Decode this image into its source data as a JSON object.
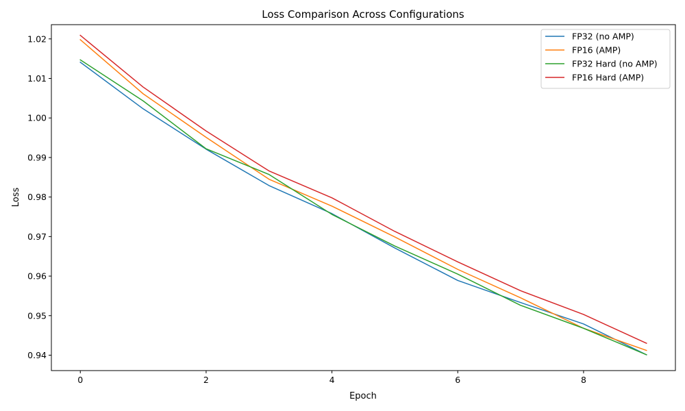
{
  "chart_data": {
    "type": "line",
    "title": "Loss Comparison Across Configurations",
    "xlabel": "Epoch",
    "ylabel": "Loss",
    "xlim": [
      -0.46,
      9.46
    ],
    "ylim": [
      0.9361,
      1.0236
    ],
    "xticks": [
      0,
      2,
      4,
      6,
      8
    ],
    "yticks": [
      0.94,
      0.95,
      0.96,
      0.97,
      0.98,
      0.99,
      1.0,
      1.01,
      1.02
    ],
    "ytick_labels": [
      "0.94",
      "0.95",
      "0.96",
      "0.97",
      "0.98",
      "0.99",
      "1.00",
      "1.01",
      "1.02"
    ],
    "grid": false,
    "legend_position": "top-right",
    "x": [
      0,
      1,
      2,
      3,
      4,
      5,
      6,
      7,
      8,
      9
    ],
    "series": [
      {
        "name": "FP32 (no AMP)",
        "color": "#1f77b4",
        "values": [
          1.0141,
          1.0023,
          0.9921,
          0.9829,
          0.9758,
          0.9671,
          0.9589,
          0.9533,
          0.9479,
          0.9401
        ]
      },
      {
        "name": "FP16 (AMP)",
        "color": "#ff7f0e",
        "values": [
          1.0198,
          1.0061,
          0.9951,
          0.9845,
          0.9777,
          0.9699,
          0.9617,
          0.9545,
          0.9468,
          0.9412
        ]
      },
      {
        "name": "FP32 Hard (no AMP)",
        "color": "#2ca02c",
        "values": [
          1.0147,
          1.0043,
          0.9922,
          0.9857,
          0.9756,
          0.9676,
          0.9605,
          0.9526,
          0.9468,
          0.9401
        ]
      },
      {
        "name": "FP16 Hard (AMP)",
        "color": "#d62728",
        "values": [
          1.0209,
          1.0078,
          0.9967,
          0.9866,
          0.9798,
          0.9713,
          0.9636,
          0.9563,
          0.9503,
          0.943
        ]
      }
    ]
  }
}
